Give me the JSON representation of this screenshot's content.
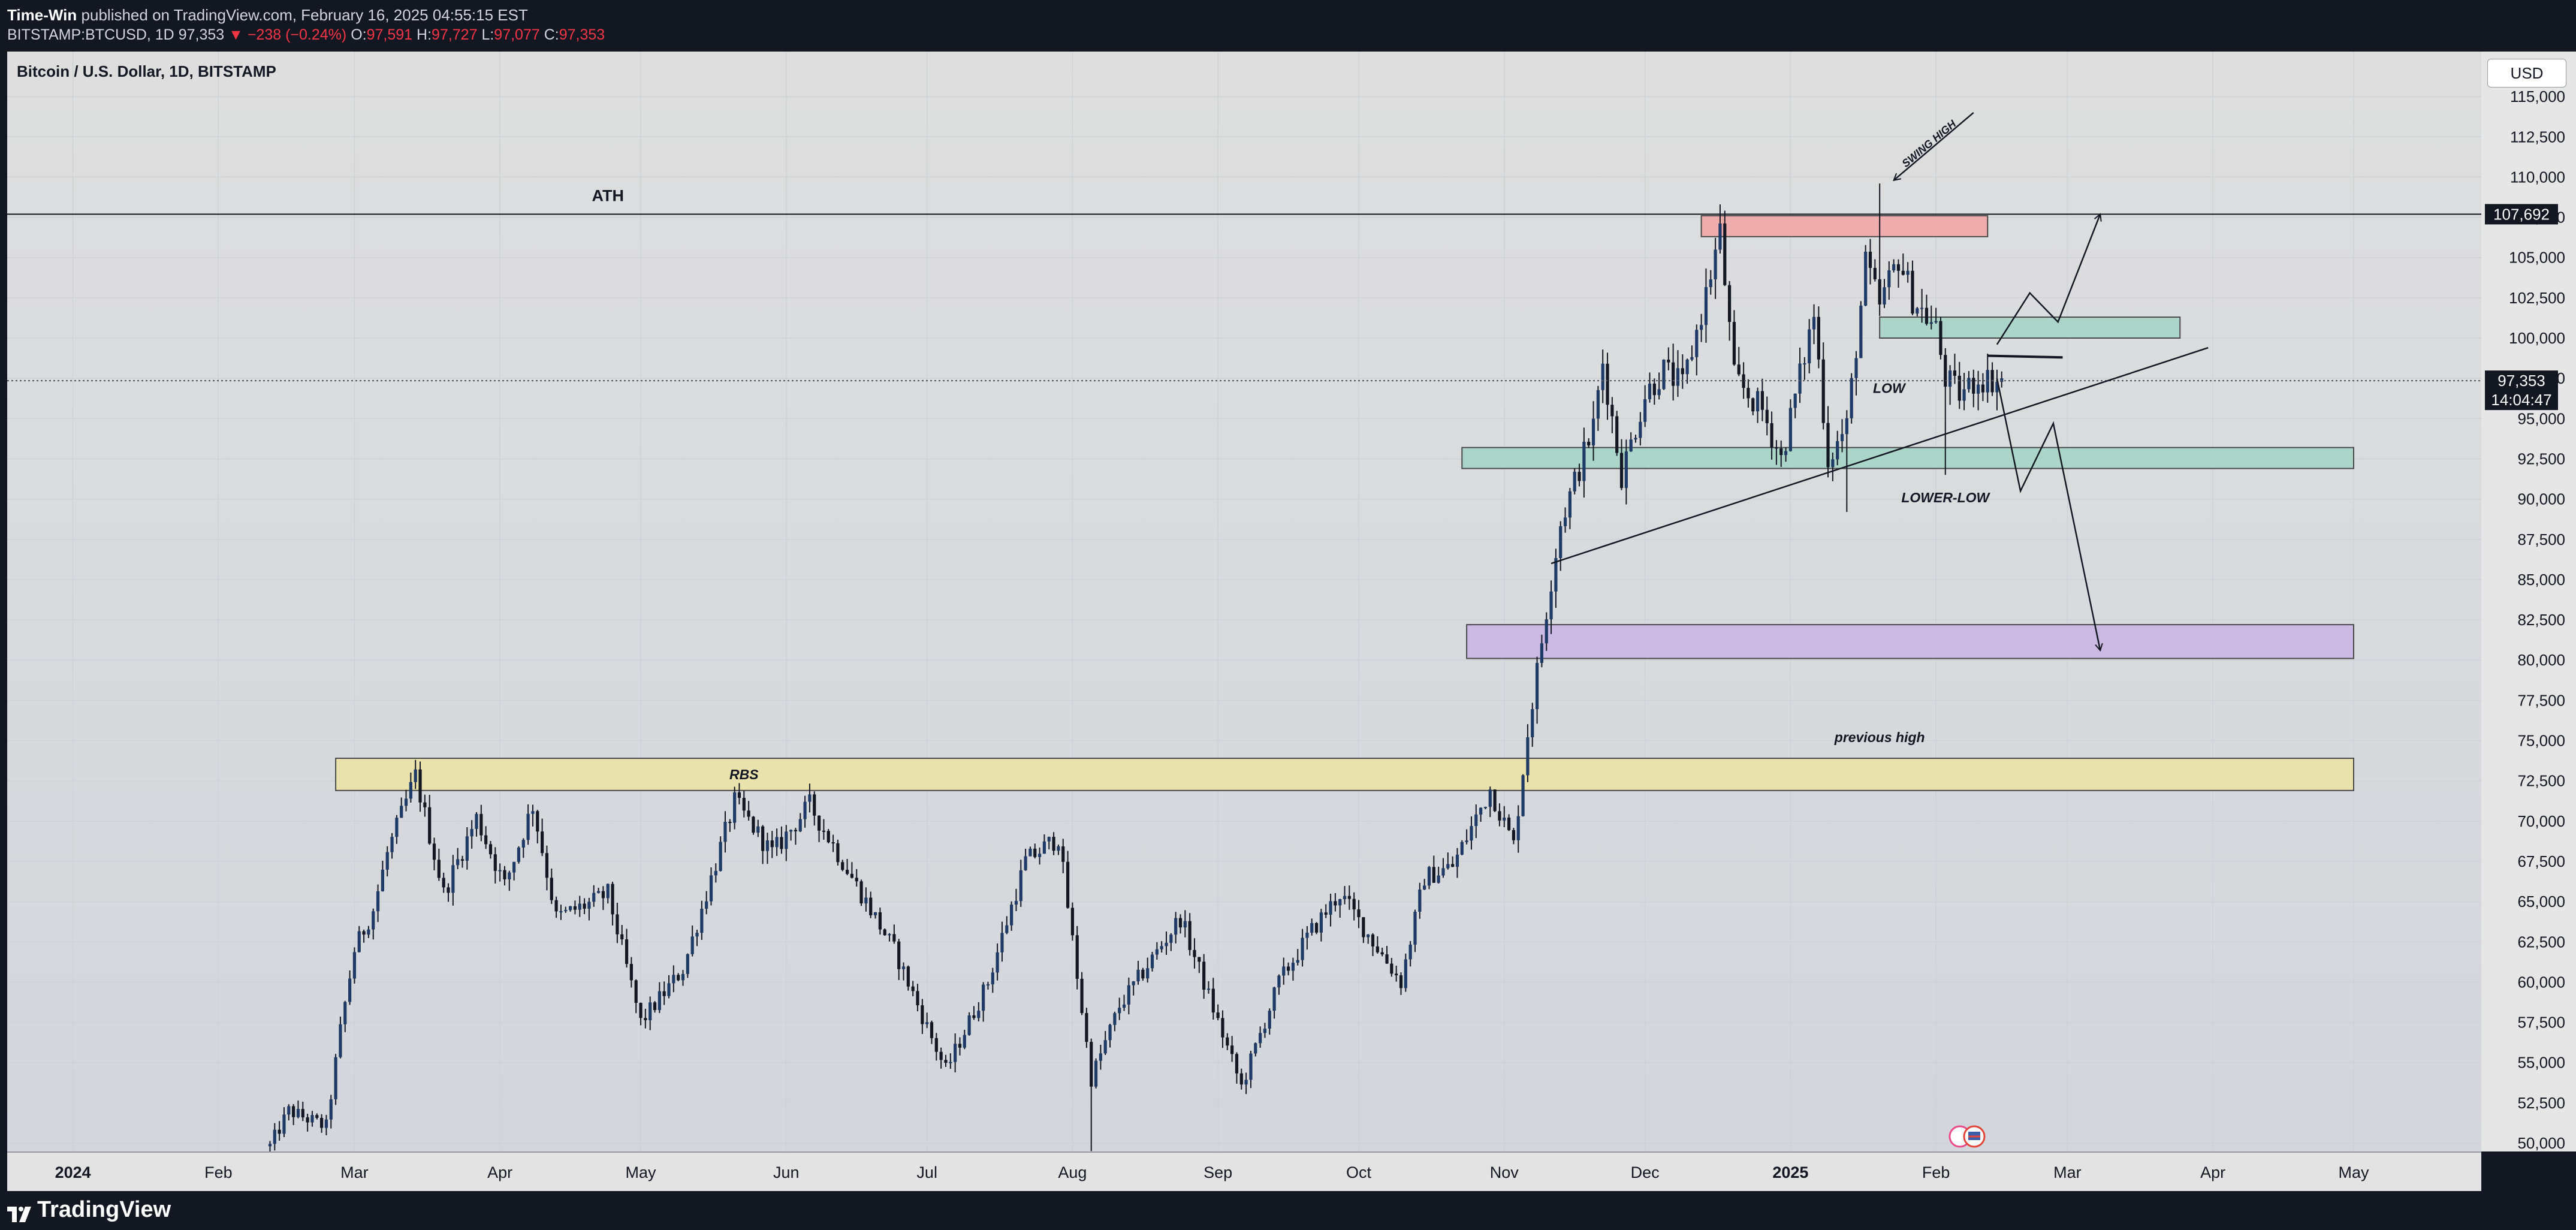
{
  "header": {
    "author": "Time-Win",
    "published_text": "published on TradingView.com, February 16, 2025 04:55:15 EST",
    "symbol": "BITSTAMP:BTCUSD, 1D",
    "last": "97,353",
    "change_arrow": "▼",
    "change": "−238 (−0.24%)",
    "o_label": "O:",
    "o_val": "97,591",
    "h_label": "H:",
    "h_val": "97,727",
    "l_label": "L:",
    "l_val": "97,077",
    "c_label": "C:",
    "c_val": "97,353"
  },
  "price_scale": {
    "currency": "USD",
    "ath_label": "107,692",
    "current_label": "97,353",
    "countdown": "14:04:47"
  },
  "footer": {
    "brand": "TradingView",
    "icon": "tradingview-logo-icon"
  },
  "chart_data": {
    "type": "candlestick",
    "title": "Bitcoin / U.S. Dollar, 1D, BITSTAMP",
    "y_range": [
      49500,
      116500
    ],
    "y_ticks": [
      50000,
      52500,
      55000,
      57500,
      60000,
      62500,
      65000,
      67500,
      70000,
      72500,
      75000,
      77500,
      80000,
      82500,
      85000,
      87500,
      90000,
      92500,
      95000,
      97500,
      100000,
      102500,
      105000,
      107500,
      110000,
      112500,
      115000
    ],
    "x_range": [
      "2023-12-18",
      "2025-06-23"
    ],
    "x_ticks": [
      {
        "label": "2024",
        "date": "2024-01-01",
        "bold": true
      },
      {
        "label": "Feb",
        "date": "2024-02-01"
      },
      {
        "label": "Mar",
        "date": "2024-03-01"
      },
      {
        "label": "Apr",
        "date": "2024-04-01"
      },
      {
        "label": "May",
        "date": "2024-05-01"
      },
      {
        "label": "Jun",
        "date": "2024-06-01"
      },
      {
        "label": "Jul",
        "date": "2024-07-01"
      },
      {
        "label": "Aug",
        "date": "2024-08-01"
      },
      {
        "label": "Sep",
        "date": "2024-09-01"
      },
      {
        "label": "Oct",
        "date": "2024-10-01"
      },
      {
        "label": "Nov",
        "date": "2024-11-01"
      },
      {
        "label": "Dec",
        "date": "2024-12-01"
      },
      {
        "label": "2025",
        "date": "2025-01-01",
        "bold": true
      },
      {
        "label": "Feb",
        "date": "2025-02-01"
      },
      {
        "label": "Mar",
        "date": "2025-03-01"
      },
      {
        "label": "Apr",
        "date": "2025-04-01"
      },
      {
        "label": "May",
        "date": "2025-05-01"
      },
      {
        "label": "Jun",
        "date": "2025-06-01"
      }
    ],
    "close_path": [
      [
        "2024-02-12",
        49800
      ],
      [
        "2024-02-16",
        52000
      ],
      [
        "2024-02-24",
        51000
      ],
      [
        "2024-02-27",
        57000
      ],
      [
        "2024-03-01",
        62000
      ],
      [
        "2024-03-05",
        64500
      ],
      [
        "2024-03-08",
        68000
      ],
      [
        "2024-03-14",
        72800
      ],
      [
        "2024-03-20",
        65500
      ],
      [
        "2024-03-27",
        70200
      ],
      [
        "2024-04-02",
        66000
      ],
      [
        "2024-04-08",
        71000
      ],
      [
        "2024-04-13",
        64000
      ],
      [
        "2024-04-21",
        65000
      ],
      [
        "2024-04-24",
        65500
      ],
      [
        "2024-05-01",
        57500
      ],
      [
        "2024-05-10",
        60800
      ],
      [
        "2024-05-15",
        65500
      ],
      [
        "2024-05-21",
        71200
      ],
      [
        "2024-05-29",
        68000
      ],
      [
        "2024-06-06",
        71000
      ],
      [
        "2024-06-18",
        65000
      ],
      [
        "2024-06-24",
        62000
      ],
      [
        "2024-07-05",
        54500
      ],
      [
        "2024-07-14",
        60000
      ],
      [
        "2024-07-22",
        67500
      ],
      [
        "2024-07-29",
        69000
      ],
      [
        "2024-08-05",
        54000
      ],
      [
        "2024-08-11",
        58500
      ],
      [
        "2024-08-24",
        64000
      ],
      [
        "2024-09-06",
        53500
      ],
      [
        "2024-09-14",
        60000
      ],
      [
        "2024-09-21",
        63200
      ],
      [
        "2024-09-27",
        65500
      ],
      [
        "2024-10-10",
        60000
      ],
      [
        "2024-10-15",
        66500
      ],
      [
        "2024-10-21",
        67200
      ],
      [
        "2024-10-29",
        72000
      ],
      [
        "2024-11-03",
        68500
      ],
      [
        "2024-11-06",
        75500
      ],
      [
        "2024-11-11",
        85000
      ],
      [
        "2024-11-13",
        88500
      ],
      [
        "2024-11-20",
        94500
      ],
      [
        "2024-11-22",
        98500
      ],
      [
        "2024-11-26",
        91500
      ],
      [
        "2024-12-01",
        96500
      ],
      [
        "2024-12-05",
        98000
      ],
      [
        "2024-12-09",
        97000
      ],
      [
        "2024-12-13",
        101500
      ],
      [
        "2024-12-17",
        106500
      ],
      [
        "2024-12-20",
        97500
      ],
      [
        "2024-12-26",
        95500
      ],
      [
        "2024-12-30",
        92500
      ],
      [
        "2025-01-06",
        101500
      ],
      [
        "2025-01-09",
        92500
      ],
      [
        "2025-01-13",
        94500
      ],
      [
        "2025-01-17",
        104500
      ],
      [
        "2025-01-20",
        102000
      ],
      [
        "2025-01-24",
        105000
      ],
      [
        "2025-01-27",
        102500
      ],
      [
        "2025-02-01",
        100500
      ],
      [
        "2025-02-03",
        97500
      ],
      [
        "2025-02-06",
        96500
      ],
      [
        "2025-02-10",
        97500
      ],
      [
        "2025-02-15",
        97353
      ]
    ],
    "spikes": [
      {
        "date": "2024-03-14",
        "high": 73800
      },
      {
        "date": "2024-08-05",
        "low": 49500
      },
      {
        "date": "2024-12-17",
        "high": 108300
      },
      {
        "date": "2025-01-13",
        "low": 89200
      },
      {
        "date": "2025-01-20",
        "high": 109600
      },
      {
        "date": "2025-02-03",
        "low": 91500
      }
    ],
    "levels": [
      {
        "name": "ATH",
        "value": 107692,
        "label": "ATH"
      },
      {
        "name": "current",
        "value": 97353
      }
    ],
    "zones": [
      {
        "name": "swing-high-zone",
        "start": "2024-12-13",
        "end": "2025-02-12",
        "low": 106300,
        "high": 107600,
        "color": "#f2a7a7"
      },
      {
        "name": "upper-resistance-zone",
        "start": "2025-01-20",
        "end": "2025-03-25",
        "low": 100000,
        "high": 101300,
        "color": "#a8d5c8"
      },
      {
        "name": "support-zone",
        "start": "2024-10-23",
        "end": "2025-05-01",
        "low": 91900,
        "high": 93200,
        "color": "#a8d5c8"
      },
      {
        "name": "target-zone",
        "start": "2024-10-24",
        "end": "2025-05-01",
        "low": 80100,
        "high": 82200,
        "color": "#c9b6e4"
      },
      {
        "name": "rbs-zone",
        "start": "2024-02-26",
        "end": "2025-05-01",
        "low": 71900,
        "high": 73900,
        "color": "#ede4a8",
        "label": "RBS"
      }
    ],
    "annotations": [
      {
        "text": "ATH",
        "date": "2024-04-24",
        "value": 108500
      },
      {
        "text": "LOW",
        "date": "2025-01-22",
        "value": 96600
      },
      {
        "text": "LOWER-LOW",
        "date": "2025-02-03",
        "value": 89800
      },
      {
        "text": "previous high",
        "date": "2025-01-20",
        "value": 74900
      },
      {
        "text": "RBS",
        "date": "2024-05-23",
        "value": 72600
      },
      {
        "text": "SWING HIGH",
        "date": "2025-01-31",
        "value": 111900,
        "rotate": -40
      }
    ],
    "trendline": {
      "from": [
        "2024-11-11",
        86000
      ],
      "to": [
        "2025-03-31",
        99400
      ]
    },
    "low_line": {
      "from": [
        "2025-02-12",
        98900
      ],
      "to": [
        "2025-02-28",
        98800
      ]
    },
    "swing_high_arrow": {
      "from": [
        "2025-02-09",
        114000
      ],
      "to": [
        "2025-01-23",
        109800
      ]
    },
    "projection_up": [
      [
        "2025-02-14",
        99600
      ],
      [
        "2025-02-21",
        102800
      ],
      [
        "2025-02-27",
        101000
      ],
      [
        "2025-03-08",
        107700
      ]
    ],
    "projection_down": [
      [
        "2025-02-14",
        97500
      ],
      [
        "2025-02-19",
        90500
      ],
      [
        "2025-02-26",
        94700
      ],
      [
        "2025-03-08",
        80600
      ]
    ],
    "grid": true
  }
}
